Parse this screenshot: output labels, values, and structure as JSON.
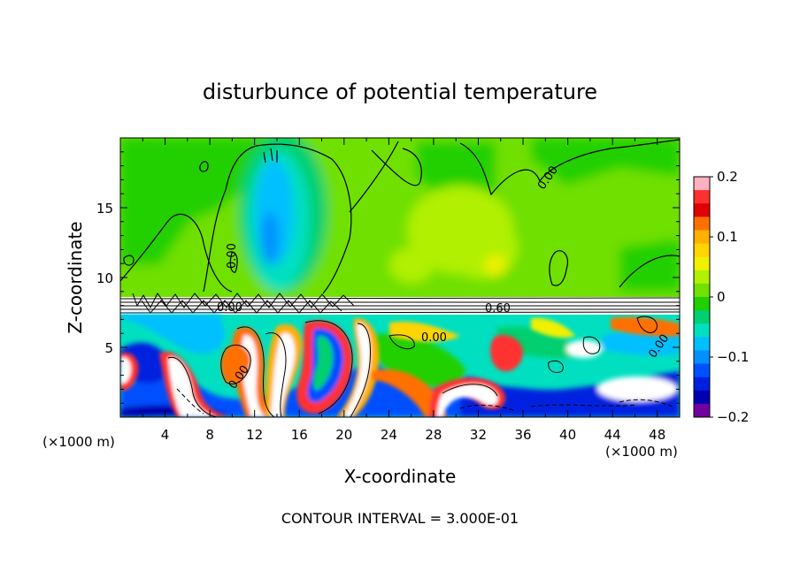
{
  "chart_data": {
    "type": "heatmap",
    "title": "disturbunce of potential temperature",
    "xlabel": "X-coordinate",
    "ylabel": "Z-coordinate",
    "x_unit_label": "(×1000 m)",
    "x_unit_label_right": "(×1000 m)",
    "xlim": [
      0,
      50
    ],
    "ylim": [
      0,
      20
    ],
    "x_ticks": [
      4,
      8,
      12,
      16,
      20,
      24,
      28,
      32,
      36,
      40,
      44,
      48
    ],
    "y_ticks": [
      5,
      10,
      15
    ],
    "colorbar": {
      "min": -0.2,
      "max": 0.2,
      "tick_values": [
        0.2,
        0.1,
        0,
        -0.1,
        -0.2
      ],
      "tick_labels": [
        "0.2",
        "0.1",
        "0",
        "−0.1",
        "−0.2"
      ],
      "colors": [
        "#ffb0c0",
        "#ff3030",
        "#e00000",
        "#ff7000",
        "#ffb000",
        "#ffd400",
        "#f0f000",
        "#b0f000",
        "#70e000",
        "#20d000",
        "#00d070",
        "#00e0c0",
        "#00c0ff",
        "#0090ff",
        "#0050ff",
        "#0020e0",
        "#0000b0",
        "#7000a0"
      ]
    },
    "contour_labels": [
      "0.00",
      "0.00",
      "0.00",
      "0.00",
      "0.60",
      "0.00",
      "0.00"
    ],
    "footer": "CONTOUR INTERVAL = 3.000E-01"
  }
}
